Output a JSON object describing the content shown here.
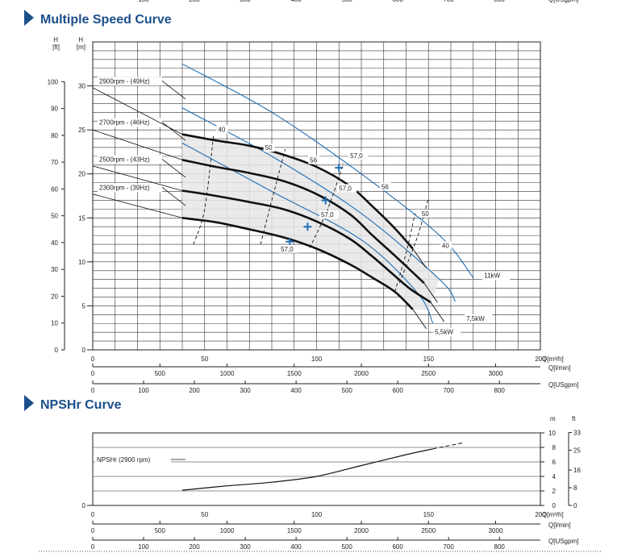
{
  "sections": {
    "multiple_speed_title": "Multiple Speed Curve",
    "npshr_title": "NPSHr Curve"
  },
  "colors": {
    "accent": "#1b4f8a",
    "iso_line": "#1f6fb5",
    "region_fill": "#e6e6e6"
  },
  "chart_data": [
    {
      "type": "line",
      "title": "Multiple Speed Curve",
      "xlabel": "Q[m³/h]",
      "xlim": [
        0,
        200
      ],
      "x_ticks": [
        0,
        50,
        100,
        150,
        200
      ],
      "x_tick_labels": [
        "0",
        "50",
        "100",
        "150",
        "200"
      ],
      "secondary_x_axes": [
        {
          "label": "Q[l/min]",
          "ticks": [
            "0",
            "500",
            "1000",
            "1500",
            "2000",
            "2500",
            "3000"
          ]
        },
        {
          "label": "Q[USgpm]",
          "ticks": [
            "0",
            "100",
            "200",
            "300",
            "400",
            "500",
            "600",
            "700",
            "800"
          ]
        }
      ],
      "top_axis_ticks": [
        "100",
        "200",
        "300",
        "400",
        "500",
        "600",
        "700",
        "800"
      ],
      "top_axis_label": "Q[USgpm]",
      "ylabel_left_m": "H [m]",
      "ylabel_left_ft": "H [ft]",
      "ylim_m": [
        0,
        35
      ],
      "y_ticks_m": [
        "0",
        "5",
        "10",
        "15",
        "20",
        "25",
        "30"
      ],
      "y_ticks_ft": [
        "0",
        "10",
        "20",
        "30",
        "40",
        "50",
        "60",
        "70",
        "80",
        "90",
        "100"
      ],
      "grid": true,
      "series": [
        {
          "name": "2900rpm - (49Hz)",
          "x": [
            40,
            55,
            70,
            85,
            100,
            115,
            125,
            135,
            143
          ],
          "y": [
            24.5,
            23.8,
            23.2,
            22.2,
            20.8,
            18.6,
            16.3,
            13.8,
            11.5
          ]
        },
        {
          "name": "2700rpm - (46Hz)",
          "x": [
            40,
            55,
            70,
            85,
            100,
            115,
            125,
            135,
            148
          ],
          "y": [
            21.6,
            20.8,
            20.1,
            19.2,
            17.7,
            15.4,
            13.0,
            10.7,
            7.6
          ]
        },
        {
          "name": "2500rpm - (43Hz)",
          "x": [
            40,
            55,
            70,
            85,
            100,
            115,
            125,
            135,
            142,
            151
          ],
          "y": [
            18.1,
            17.5,
            16.8,
            16.0,
            14.6,
            12.6,
            10.6,
            8.4,
            6.9,
            5.4
          ]
        },
        {
          "name": "2300rpm - (39Hz)",
          "x": [
            40,
            55,
            70,
            85,
            100,
            115,
            125,
            135,
            143
          ],
          "y": [
            15.0,
            14.5,
            13.7,
            12.8,
            11.5,
            9.7,
            8.2,
            6.6,
            4.6
          ]
        }
      ],
      "lower_speed_labels": [
        "2900rpm - (49Hz)",
        "2700rpm - (46Hz)",
        "2500rpm - (43Hz)",
        "2300rpm - (39Hz)"
      ],
      "efficiency_labels": [
        "40",
        "50",
        "56",
        "57,0",
        "57,0",
        "57,0",
        "57,0",
        "56",
        "50",
        "40"
      ],
      "power_labels": [
        "11kW",
        "7,5kW",
        "5,5kW"
      ]
    },
    {
      "type": "line",
      "title": "NPSHr Curve",
      "xlabel": "Q[m³/h]",
      "xlim": [
        0,
        200
      ],
      "ylabel_right_m": "m",
      "ylabel_right_ft": "ft",
      "ylim_m": [
        0,
        10
      ],
      "y_ticks_m": [
        "0",
        "2",
        "4",
        "6",
        "8",
        "10"
      ],
      "y_ticks_ft": [
        "0",
        "8",
        "16",
        "25",
        "33"
      ],
      "series": [
        {
          "name": "NPSHr (2900 rpm)",
          "x": [
            40,
            60,
            80,
            100,
            120,
            140,
            152,
            165
          ],
          "y": [
            2.1,
            2.7,
            3.2,
            4.0,
            5.5,
            7.0,
            7.8,
            8.6
          ]
        }
      ]
    }
  ]
}
